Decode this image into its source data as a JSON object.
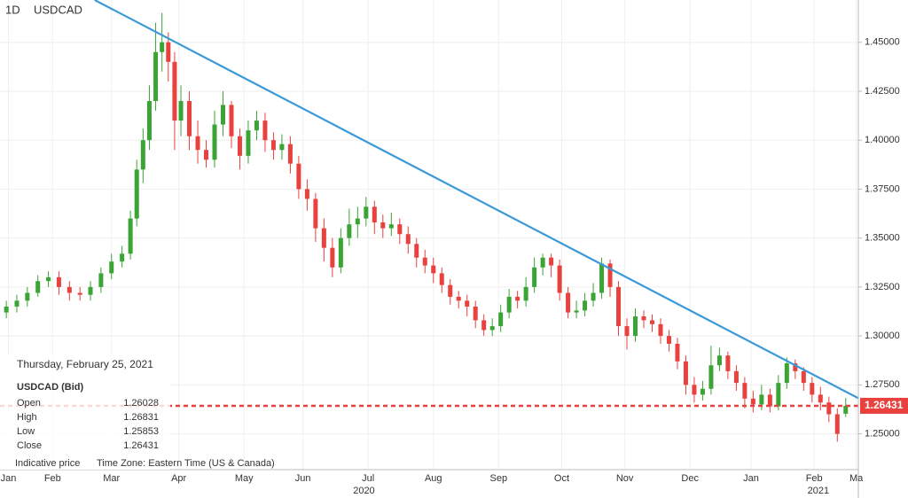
{
  "chart_data": {
    "type": "candlestick",
    "timeframe": "1D",
    "title": "USDCAD",
    "x": [
      20,
      25,
      30,
      35,
      40,
      45,
      50,
      55,
      60,
      65,
      70,
      75,
      79,
      82,
      85,
      88,
      91,
      94,
      97,
      100,
      103,
      107,
      111,
      115,
      119,
      123,
      127,
      131,
      135,
      139,
      143,
      147,
      151,
      155,
      159,
      163,
      167,
      171,
      175,
      179,
      183,
      187,
      191,
      195,
      199,
      203,
      207,
      211,
      215,
      219,
      223,
      227,
      231,
      235,
      239,
      243,
      247,
      251,
      255,
      259,
      263,
      267,
      271,
      275,
      279,
      283,
      287,
      291,
      295,
      299,
      303,
      307,
      311,
      315,
      319,
      323,
      327,
      331,
      335,
      339,
      343,
      347,
      351,
      355,
      359,
      363,
      367,
      371,
      375,
      379,
      383,
      387,
      391,
      395,
      399,
      403,
      407,
      411,
      415,
      419
    ],
    "open": [
      1.312,
      1.315,
      1.318,
      1.322,
      1.328,
      1.33,
      1.325,
      1.322,
      1.321,
      1.325,
      1.332,
      1.338,
      1.342,
      1.36,
      1.385,
      1.4,
      1.42,
      1.445,
      1.45,
      1.44,
      1.41,
      1.42,
      1.402,
      1.395,
      1.39,
      1.408,
      1.418,
      1.402,
      1.392,
      1.405,
      1.41,
      1.4,
      1.395,
      1.398,
      1.388,
      1.375,
      1.37,
      1.355,
      1.345,
      1.335,
      1.35,
      1.357,
      1.36,
      1.366,
      1.358,
      1.355,
      1.357,
      1.352,
      1.347,
      1.34,
      1.336,
      1.332,
      1.326,
      1.32,
      1.318,
      1.315,
      1.308,
      1.303,
      1.305,
      1.312,
      1.32,
      1.318,
      1.325,
      1.335,
      1.34,
      1.336,
      1.322,
      1.312,
      1.313,
      1.318,
      1.322,
      1.337,
      1.325,
      1.305,
      1.3,
      1.31,
      1.308,
      1.306,
      1.3,
      1.296,
      1.287,
      1.275,
      1.27,
      1.273,
      1.285,
      1.29,
      1.282,
      1.276,
      1.268,
      1.265,
      1.27,
      1.264,
      1.276,
      1.286,
      1.282,
      1.276,
      1.27,
      1.266,
      1.26,
      1.26028
    ],
    "high": [
      1.318,
      1.321,
      1.325,
      1.331,
      1.333,
      1.333,
      1.328,
      1.325,
      1.328,
      1.335,
      1.342,
      1.346,
      1.364,
      1.39,
      1.406,
      1.428,
      1.46,
      1.465,
      1.455,
      1.445,
      1.428,
      1.425,
      1.41,
      1.4,
      1.415,
      1.425,
      1.42,
      1.406,
      1.41,
      1.415,
      1.414,
      1.404,
      1.403,
      1.402,
      1.392,
      1.38,
      1.373,
      1.36,
      1.35,
      1.355,
      1.365,
      1.366,
      1.371,
      1.369,
      1.362,
      1.363,
      1.36,
      1.356,
      1.35,
      1.344,
      1.34,
      1.335,
      1.329,
      1.323,
      1.321,
      1.318,
      1.311,
      1.309,
      1.316,
      1.324,
      1.323,
      1.33,
      1.34,
      1.342,
      1.342,
      1.339,
      1.325,
      1.318,
      1.322,
      1.327,
      1.34,
      1.339,
      1.328,
      1.309,
      1.314,
      1.313,
      1.311,
      1.309,
      1.303,
      1.299,
      1.29,
      1.279,
      1.277,
      1.295,
      1.294,
      1.292,
      1.285,
      1.279,
      1.272,
      1.275,
      1.273,
      1.28,
      1.289,
      1.288,
      1.284,
      1.279,
      1.274,
      1.269,
      1.263,
      1.26831
    ],
    "low": [
      1.309,
      1.312,
      1.315,
      1.32,
      1.325,
      1.321,
      1.318,
      1.318,
      1.318,
      1.322,
      1.329,
      1.335,
      1.339,
      1.356,
      1.378,
      1.395,
      1.415,
      1.435,
      1.43,
      1.395,
      1.402,
      1.395,
      1.388,
      1.386,
      1.386,
      1.402,
      1.396,
      1.385,
      1.388,
      1.4,
      1.394,
      1.39,
      1.39,
      1.383,
      1.37,
      1.364,
      1.348,
      1.338,
      1.33,
      1.332,
      1.346,
      1.35,
      1.356,
      1.352,
      1.35,
      1.351,
      1.347,
      1.342,
      1.335,
      1.332,
      1.327,
      1.322,
      1.316,
      1.314,
      1.31,
      1.304,
      1.3,
      1.3,
      1.302,
      1.309,
      1.314,
      1.315,
      1.322,
      1.331,
      1.33,
      1.318,
      1.309,
      1.309,
      1.31,
      1.315,
      1.319,
      1.32,
      1.3,
      1.293,
      1.297,
      1.304,
      1.302,
      1.296,
      1.292,
      1.283,
      1.27,
      1.266,
      1.267,
      1.27,
      1.282,
      1.278,
      1.272,
      1.263,
      1.261,
      1.262,
      1.261,
      1.262,
      1.273,
      1.278,
      1.272,
      1.266,
      1.262,
      1.256,
      1.246,
      1.25853
    ],
    "close": [
      1.315,
      1.318,
      1.322,
      1.328,
      1.33,
      1.325,
      1.322,
      1.321,
      1.325,
      1.332,
      1.338,
      1.342,
      1.36,
      1.385,
      1.4,
      1.42,
      1.445,
      1.45,
      1.44,
      1.41,
      1.42,
      1.402,
      1.395,
      1.39,
      1.408,
      1.418,
      1.402,
      1.392,
      1.405,
      1.41,
      1.4,
      1.395,
      1.398,
      1.388,
      1.375,
      1.37,
      1.355,
      1.345,
      1.335,
      1.35,
      1.357,
      1.36,
      1.366,
      1.358,
      1.355,
      1.357,
      1.352,
      1.347,
      1.34,
      1.336,
      1.332,
      1.326,
      1.32,
      1.318,
      1.315,
      1.308,
      1.303,
      1.305,
      1.312,
      1.32,
      1.318,
      1.325,
      1.335,
      1.34,
      1.336,
      1.322,
      1.312,
      1.313,
      1.318,
      1.322,
      1.337,
      1.325,
      1.305,
      1.3,
      1.31,
      1.308,
      1.306,
      1.3,
      1.296,
      1.287,
      1.275,
      1.27,
      1.273,
      1.285,
      1.29,
      1.282,
      1.276,
      1.268,
      1.265,
      1.27,
      1.264,
      1.276,
      1.286,
      1.282,
      1.276,
      1.27,
      1.266,
      1.26,
      1.25,
      1.26431
    ],
    "up_color": "#3aa435",
    "down_color": "#e8413e",
    "xlim": [
      17,
      425
    ],
    "ylim": [
      1.2317,
      1.4716
    ],
    "xticks": [
      {
        "value": 21,
        "label": "Jan"
      },
      {
        "value": 42,
        "label": "Feb"
      },
      {
        "value": 70,
        "label": "Mar"
      },
      {
        "value": 102,
        "label": "Apr"
      },
      {
        "value": 133,
        "label": "May"
      },
      {
        "value": 161,
        "label": "Jun"
      },
      {
        "value": 192,
        "label": "Jul"
      },
      {
        "value": 223,
        "label": "Aug"
      },
      {
        "value": 254,
        "label": "Sep"
      },
      {
        "value": 284,
        "label": "Oct"
      },
      {
        "value": 314,
        "label": "Nov"
      },
      {
        "value": 345,
        "label": "Dec"
      },
      {
        "value": 374,
        "label": "Jan"
      },
      {
        "value": 404,
        "label": "Feb"
      },
      {
        "value": 424,
        "label": "Ma"
      }
    ],
    "x_group_labels": [
      {
        "value": 190,
        "label": "2020"
      },
      {
        "value": 406,
        "label": "2021"
      }
    ],
    "yticks": [
      {
        "value": 1.25,
        "label": "1.25000"
      },
      {
        "value": 1.275,
        "label": "1.27500"
      },
      {
        "value": 1.3,
        "label": "1.30000"
      },
      {
        "value": 1.325,
        "label": "1.32500"
      },
      {
        "value": 1.35,
        "label": "1.35000"
      },
      {
        "value": 1.375,
        "label": "1.37500"
      },
      {
        "value": 1.4,
        "label": "1.40000"
      },
      {
        "value": 1.425,
        "label": "1.42500"
      },
      {
        "value": 1.45,
        "label": "1.45000"
      }
    ],
    "grid": true,
    "trendline": {
      "x": [
        62,
        425
      ],
      "y": [
        1.4716,
        1.2682
      ],
      "color": "#3a9ad9"
    },
    "price_line_color": "#e8413e",
    "info": {
      "date": "Thursday, February 25, 2021",
      "symbol": "USDCAD (Bid)",
      "rows": [
        "Open",
        "High",
        "Low",
        "Close"
      ],
      "note": "Indicative price",
      "timezone": "Time Zone: Eastern Time (US & Canada)"
    }
  }
}
